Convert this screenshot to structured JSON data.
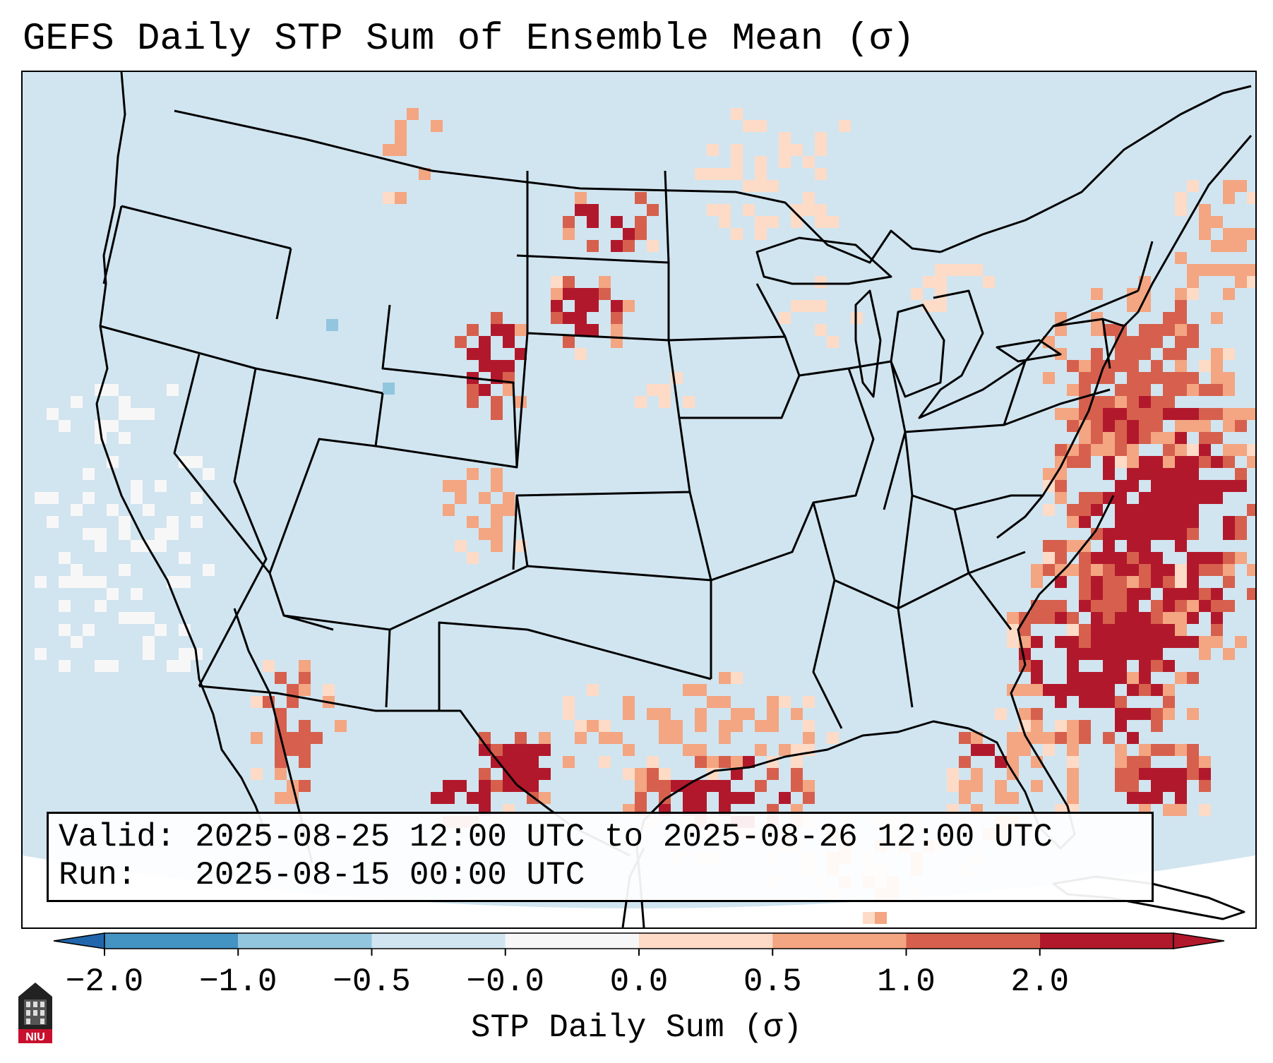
{
  "title": "GEFS Daily STP Sum of Ensemble Mean (σ)",
  "info": {
    "valid_line": "Valid: 2025-08-25 12:00 UTC to 2025-08-26 12:00 UTC",
    "run_line": "Run:   2025-08-15 00:00 UTC"
  },
  "colorbar": {
    "label": "STP Daily Sum (σ)",
    "ticks": [
      "−2.0",
      "−1.0",
      "−0.5",
      "−0.0",
      "0.0",
      "0.5",
      "1.0",
      "2.0"
    ],
    "bin_colors": [
      "#4393c3",
      "#92c5de",
      "#d1e5f0",
      "#f7f7f7",
      "#fddbc7",
      "#f4a582",
      "#d6604d",
      "#b2182b"
    ],
    "under_color": "#2166ac",
    "over_color": "#b2182b"
  },
  "map": {
    "background_color": "#d1e5f0",
    "region": "Contiguous United States",
    "hotspots": [
      {
        "area": "Atlantic off Mid-Atlantic and Carolinas",
        "level": 2
      },
      {
        "area": "Northeast",
        "level": 1
      },
      {
        "area": "Western South Dakota",
        "level": 2
      },
      {
        "area": "Eastern Wyoming",
        "level": 2
      },
      {
        "area": "Western North Dakota",
        "level": 2
      },
      {
        "area": "Gulf of Mexico",
        "level": 2
      },
      {
        "area": "Northern Bahamas",
        "level": 2
      },
      {
        "area": "Northeastern Mexico",
        "level": 2
      },
      {
        "area": "Florida",
        "level": 1
      }
    ]
  },
  "logo": {
    "text": "NIU"
  }
}
